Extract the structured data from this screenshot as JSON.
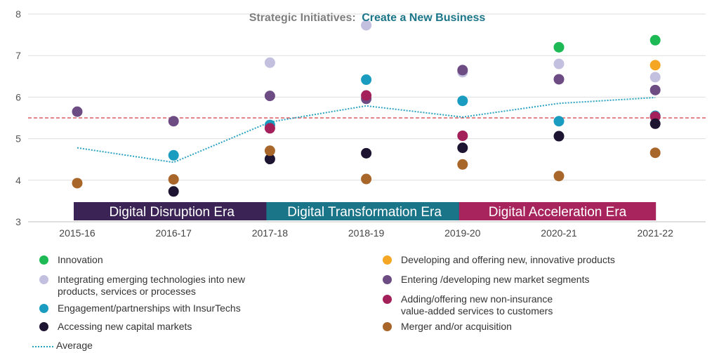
{
  "chart_data": {
    "type": "scatter",
    "title_part1": "Strategic Initiatives:",
    "title_part2": "Create a New Business",
    "categories": [
      "2015-16",
      "2016-17",
      "2017-18",
      "2018-19",
      "2019-20",
      "2020-21",
      "2021-22"
    ],
    "ylim": [
      3,
      8
    ],
    "yticks": [
      3,
      4,
      5,
      6,
      7,
      8
    ],
    "reference_line": 5.5,
    "series": [
      {
        "name": "Innovation",
        "color": "#1db954",
        "values": [
          null,
          null,
          null,
          null,
          null,
          7.2,
          7.37
        ]
      },
      {
        "name": "Developing and offering new, innovative products",
        "color": "#f5a623",
        "values": [
          null,
          null,
          null,
          null,
          null,
          null,
          6.77
        ]
      },
      {
        "name": "Integrating emerging technologies into new\nproducts, services or processes",
        "color": "#c2bfdf",
        "values": [
          null,
          null,
          6.83,
          7.73,
          6.6,
          6.8,
          6.48
        ]
      },
      {
        "name": "Entering /developing new market segments",
        "color": "#6d4c84",
        "values": [
          5.65,
          5.42,
          6.03,
          5.96,
          6.65,
          6.43,
          6.17
        ]
      },
      {
        "name": "Engagement/partnerships with InsurTechs",
        "color": "#1a9cc0",
        "values": [
          null,
          4.6,
          5.33,
          6.42,
          5.91,
          5.42,
          5.55
        ]
      },
      {
        "name": "Adding/offering new non-insurance\nvalue-added services to customers",
        "color": "#a3205a",
        "values": [
          null,
          null,
          5.25,
          6.04,
          5.07,
          null,
          5.53
        ]
      },
      {
        "name": "Accessing new capital markets",
        "color": "#1c1430",
        "values": [
          null,
          3.73,
          4.51,
          4.65,
          4.78,
          5.06,
          5.36
        ]
      },
      {
        "name": "Merger and/or acquisition",
        "color": "#a9662a",
        "values": [
          3.93,
          4.02,
          4.71,
          4.03,
          4.38,
          4.1,
          4.66
        ]
      }
    ],
    "average": {
      "name": "Average",
      "color": "#2aa3c0",
      "values": [
        4.78,
        4.43,
        5.4,
        5.79,
        5.52,
        5.85,
        5.99
      ]
    },
    "eras": [
      {
        "label": "Digital Disruption Era",
        "from": 0,
        "to": 2,
        "color": "#3b2455"
      },
      {
        "label": "Digital Transformation Era",
        "from": 2,
        "to": 4,
        "color": "#1b7589"
      },
      {
        "label": "Digital Acceleration Era",
        "from": 4,
        "to": 6,
        "color": "#a8245d"
      }
    ]
  },
  "legend_order": [
    0,
    2,
    4,
    6,
    1,
    3,
    5,
    7
  ]
}
